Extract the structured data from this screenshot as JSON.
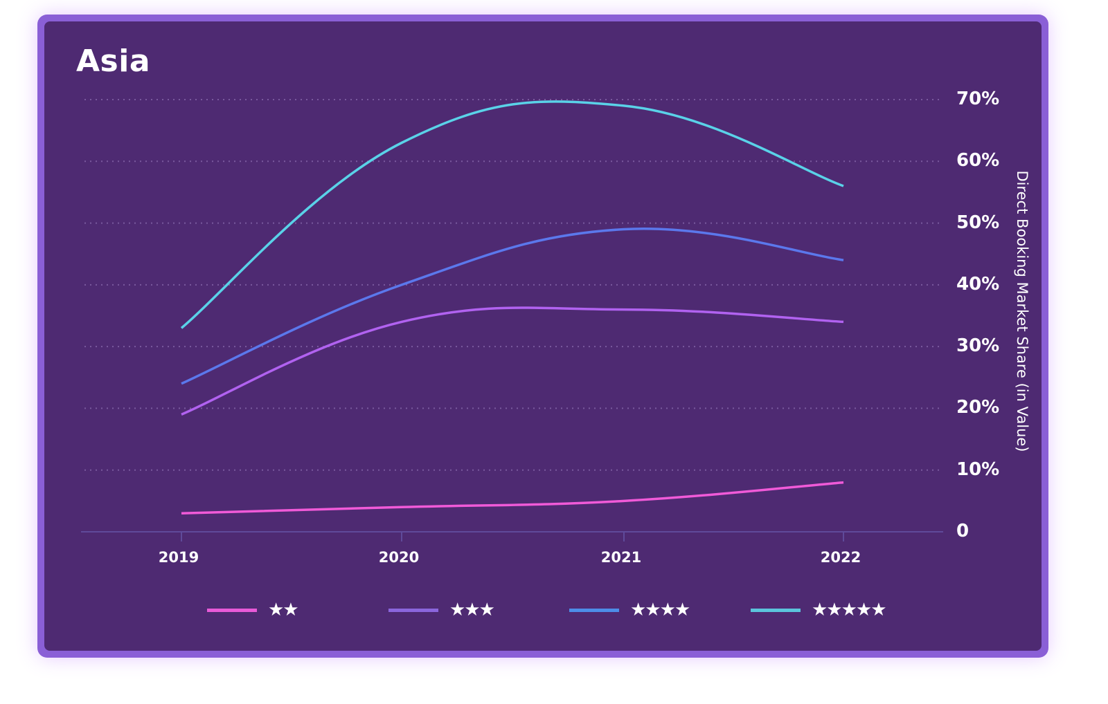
{
  "title": "Asia",
  "y_axis": {
    "label": "Direct Booking Market Share (in Value)",
    "ticks": [
      "0",
      "10%",
      "20%",
      "30%",
      "40%",
      "50%",
      "60%",
      "70%"
    ]
  },
  "x_axis": {
    "ticks": [
      "2019",
      "2020",
      "2021",
      "2022"
    ]
  },
  "legend": [
    {
      "label": "★★",
      "color": "#e85ad8"
    },
    {
      "label": "★★★",
      "color": "#8b66dd"
    },
    {
      "label": "★★★★",
      "color": "#4d8de8"
    },
    {
      "label": "★★★★★",
      "color": "#5bc4dc"
    }
  ],
  "colors": {
    "card_border": "#8a5fd6",
    "card_bg": "#4e2a72",
    "line_2star": "#f05ad8",
    "line_3star": "#b162f0",
    "line_4star": "#5b78ec",
    "line_5star": "#5ad2e8"
  },
  "chart_data": {
    "type": "line",
    "title": "Asia",
    "xlabel": "",
    "ylabel": "Direct Booking Market Share (in Value)",
    "categories": [
      "2019",
      "2020",
      "2021",
      "2022"
    ],
    "series": [
      {
        "name": "★★",
        "values": [
          3,
          4,
          5,
          8
        ]
      },
      {
        "name": "★★★",
        "values": [
          19,
          34,
          36,
          34
        ]
      },
      {
        "name": "★★★★",
        "values": [
          24,
          40,
          49,
          44
        ]
      },
      {
        "name": "★★★★★",
        "values": [
          33,
          63,
          69,
          56
        ]
      }
    ],
    "ylim": [
      0,
      70
    ],
    "y_unit": "%",
    "grid": true,
    "y_axis_position": "right",
    "legend_position": "bottom",
    "smooth": true
  }
}
